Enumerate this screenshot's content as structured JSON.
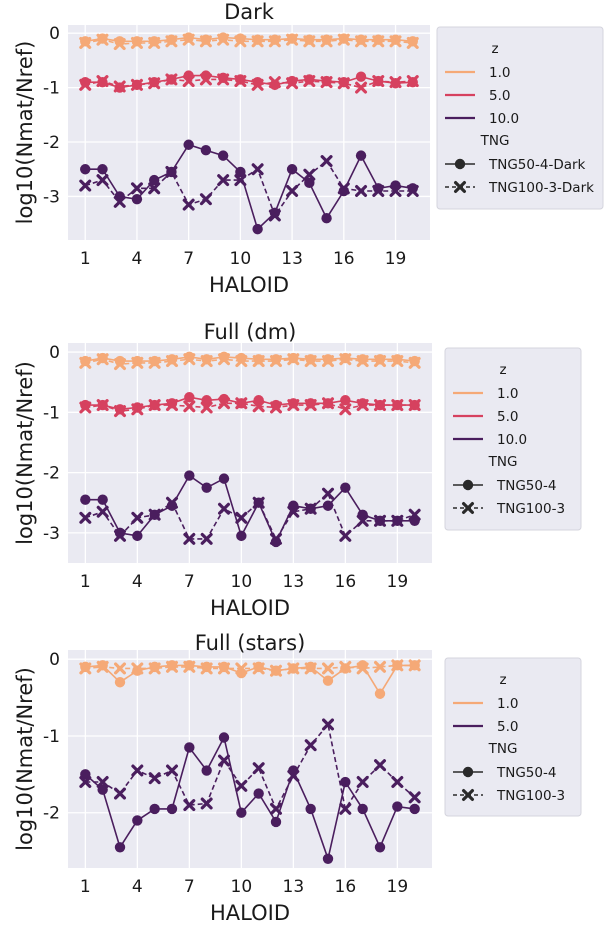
{
  "chart_data": [
    {
      "type": "line",
      "title": "Dark",
      "xlabel": "HALOID",
      "ylabel": "log10(Nmat/Nref)",
      "xlim": [
        0,
        21
      ],
      "ylim": [
        -3.8,
        0.15
      ],
      "xticks": [
        1,
        4,
        7,
        10,
        13,
        16,
        19
      ],
      "yticks": [
        0,
        -1,
        -2,
        -3
      ],
      "grid": true,
      "legend": {
        "placement": "right",
        "hue_title": "z",
        "style_title": "TNG",
        "z_entries": [
          {
            "label": "1.0",
            "color": "#f5a977"
          },
          {
            "label": "5.0",
            "color": "#d6415f"
          },
          {
            "label": "10.0",
            "color": "#4a1e5e"
          }
        ],
        "tng_entries": [
          {
            "label": "TNG50-4-Dark",
            "marker": "circle",
            "dash": "solid"
          },
          {
            "label": "TNG100-3-Dark",
            "marker": "x",
            "dash": "dashed"
          }
        ]
      },
      "x": [
        1,
        2,
        3,
        4,
        5,
        6,
        7,
        8,
        9,
        10,
        11,
        12,
        13,
        14,
        15,
        16,
        17,
        18,
        19,
        20
      ],
      "series": [
        {
          "z": "1.0",
          "tng": "TNG50-4-Dark",
          "color": "#f5a977",
          "values": [
            -0.15,
            -0.1,
            -0.15,
            -0.15,
            -0.15,
            -0.12,
            -0.08,
            -0.12,
            -0.08,
            -0.1,
            -0.12,
            -0.12,
            -0.1,
            -0.12,
            -0.12,
            -0.1,
            -0.12,
            -0.12,
            -0.12,
            -0.15
          ]
        },
        {
          "z": "1.0",
          "tng": "TNG100-3-Dark",
          "color": "#f5a977",
          "values": [
            -0.18,
            -0.12,
            -0.2,
            -0.18,
            -0.18,
            -0.15,
            -0.12,
            -0.15,
            -0.12,
            -0.15,
            -0.15,
            -0.15,
            -0.12,
            -0.15,
            -0.15,
            -0.12,
            -0.15,
            -0.15,
            -0.15,
            -0.18
          ]
        },
        {
          "z": "5.0",
          "tng": "TNG50-4-Dark",
          "color": "#d6415f",
          "values": [
            -0.9,
            -0.9,
            -1.0,
            -0.95,
            -0.9,
            -0.85,
            -0.78,
            -0.78,
            -0.82,
            -0.85,
            -0.9,
            -0.95,
            -0.88,
            -0.85,
            -0.88,
            -0.9,
            -0.8,
            -0.88,
            -0.92,
            -0.9
          ]
        },
        {
          "z": "5.0",
          "tng": "TNG100-3-Dark",
          "color": "#d6415f",
          "values": [
            -0.95,
            -0.88,
            -0.98,
            -0.95,
            -0.92,
            -0.85,
            -0.88,
            -0.85,
            -0.85,
            -0.88,
            -0.95,
            -0.9,
            -0.92,
            -0.88,
            -0.9,
            -0.92,
            -1.0,
            -0.88,
            -0.9,
            -0.88
          ]
        },
        {
          "z": "10.0",
          "tng": "TNG50-4-Dark",
          "color": "#4a1e5e",
          "values": [
            -2.5,
            -2.5,
            -3.0,
            -3.05,
            -2.7,
            -2.55,
            -2.05,
            -2.15,
            -2.25,
            -2.55,
            -3.6,
            -3.3,
            -2.5,
            -2.75,
            -3.4,
            -2.9,
            -2.25,
            -2.85,
            -2.8,
            -2.85
          ]
        },
        {
          "z": "10.0",
          "tng": "TNG100-3-Dark",
          "color": "#4a1e5e",
          "values": [
            -2.8,
            -2.7,
            -3.1,
            -2.85,
            -2.85,
            -2.55,
            -3.15,
            -3.05,
            -2.7,
            -2.7,
            -2.5,
            -3.35,
            -2.9,
            -2.6,
            -2.35,
            -2.85,
            -2.9,
            -2.9,
            -2.9,
            -2.9
          ]
        }
      ]
    },
    {
      "type": "line",
      "title": "Full (dm)",
      "xlabel": "HALOID",
      "ylabel": "log10(Nmat/Nref)",
      "xlim": [
        0,
        21
      ],
      "ylim": [
        -3.5,
        0.15
      ],
      "xticks": [
        1,
        4,
        7,
        10,
        13,
        16,
        19
      ],
      "yticks": [
        0,
        -1,
        -2,
        -3
      ],
      "grid": true,
      "legend": {
        "placement": "right",
        "hue_title": "z",
        "style_title": "TNG",
        "z_entries": [
          {
            "label": "1.0",
            "color": "#f5a977"
          },
          {
            "label": "5.0",
            "color": "#d6415f"
          },
          {
            "label": "10.0",
            "color": "#4a1e5e"
          }
        ],
        "tng_entries": [
          {
            "label": "TNG50-4",
            "marker": "circle",
            "dash": "solid"
          },
          {
            "label": "TNG100-3",
            "marker": "x",
            "dash": "dashed"
          }
        ]
      },
      "x": [
        1,
        2,
        3,
        4,
        5,
        6,
        7,
        8,
        9,
        10,
        11,
        12,
        13,
        14,
        15,
        16,
        17,
        18,
        19,
        20
      ],
      "series": [
        {
          "z": "1.0",
          "tng": "TNG50-4",
          "color": "#f5a977",
          "values": [
            -0.15,
            -0.1,
            -0.15,
            -0.15,
            -0.15,
            -0.12,
            -0.08,
            -0.12,
            -0.08,
            -0.1,
            -0.12,
            -0.12,
            -0.1,
            -0.12,
            -0.12,
            -0.1,
            -0.12,
            -0.12,
            -0.12,
            -0.15
          ]
        },
        {
          "z": "1.0",
          "tng": "TNG100-3",
          "color": "#f5a977",
          "values": [
            -0.18,
            -0.12,
            -0.2,
            -0.18,
            -0.18,
            -0.15,
            -0.12,
            -0.15,
            -0.12,
            -0.15,
            -0.15,
            -0.15,
            -0.12,
            -0.15,
            -0.15,
            -0.12,
            -0.15,
            -0.15,
            -0.15,
            -0.18
          ]
        },
        {
          "z": "5.0",
          "tng": "TNG50-4",
          "color": "#d6415f",
          "values": [
            -0.88,
            -0.88,
            -0.95,
            -0.92,
            -0.88,
            -0.85,
            -0.75,
            -0.8,
            -0.78,
            -0.85,
            -0.8,
            -0.88,
            -0.85,
            -0.85,
            -0.85,
            -0.8,
            -0.85,
            -0.88,
            -0.88,
            -0.88
          ]
        },
        {
          "z": "5.0",
          "tng": "TNG100-3",
          "color": "#d6415f",
          "values": [
            -0.92,
            -0.88,
            -0.98,
            -0.95,
            -0.88,
            -0.88,
            -0.9,
            -0.92,
            -0.85,
            -0.85,
            -0.9,
            -0.92,
            -0.88,
            -0.88,
            -0.85,
            -0.95,
            -0.88,
            -0.88,
            -0.88,
            -0.88
          ]
        },
        {
          "z": "10.0",
          "tng": "TNG50-4",
          "color": "#4a1e5e",
          "values": [
            -2.45,
            -2.45,
            -3.0,
            -3.05,
            -2.7,
            -2.55,
            -2.05,
            -2.25,
            -2.1,
            -3.05,
            -2.5,
            -3.15,
            -2.55,
            -2.6,
            -2.55,
            -2.25,
            -2.7,
            -2.8,
            -2.8,
            -2.8
          ]
        },
        {
          "z": "10.0",
          "tng": "TNG100-3",
          "color": "#4a1e5e",
          "values": [
            -2.75,
            -2.65,
            -3.05,
            -2.75,
            -2.7,
            -2.5,
            -3.1,
            -3.1,
            -2.6,
            -2.75,
            -2.5,
            -3.1,
            -2.65,
            -2.6,
            -2.35,
            -3.05,
            -2.8,
            -2.8,
            -2.8,
            -2.7
          ]
        }
      ]
    },
    {
      "type": "line",
      "title": "Full (stars)",
      "xlabel": "HALOID",
      "ylabel": "log10(Nmat/Nref)",
      "xlim": [
        0,
        21
      ],
      "ylim": [
        -2.72,
        0.12
      ],
      "xticks": [
        1,
        4,
        7,
        10,
        13,
        16,
        19
      ],
      "yticks": [
        0,
        -1,
        -2
      ],
      "grid": true,
      "legend": {
        "placement": "right",
        "hue_title": "z",
        "style_title": "TNG",
        "z_entries": [
          {
            "label": "1.0",
            "color": "#f5a977"
          },
          {
            "label": "5.0",
            "color": "#4a1e5e"
          }
        ],
        "tng_entries": [
          {
            "label": "TNG50-4",
            "marker": "circle",
            "dash": "solid"
          },
          {
            "label": "TNG100-3",
            "marker": "x",
            "dash": "dashed"
          }
        ]
      },
      "x": [
        1,
        2,
        3,
        4,
        5,
        6,
        7,
        8,
        9,
        10,
        11,
        12,
        13,
        14,
        15,
        16,
        17,
        18,
        19,
        20
      ],
      "series": [
        {
          "z": "1.0",
          "tng": "TNG50-4",
          "color": "#f5a977",
          "values": [
            -0.1,
            -0.08,
            -0.3,
            -0.15,
            -0.1,
            -0.08,
            -0.08,
            -0.1,
            -0.1,
            -0.18,
            -0.1,
            -0.15,
            -0.12,
            -0.1,
            -0.28,
            -0.12,
            -0.08,
            -0.45,
            -0.08,
            -0.08
          ]
        },
        {
          "z": "1.0",
          "tng": "TNG100-3",
          "color": "#f5a977",
          "values": [
            -0.12,
            -0.1,
            -0.12,
            -0.12,
            -0.12,
            -0.1,
            -0.1,
            -0.12,
            -0.12,
            -0.12,
            -0.12,
            -0.15,
            -0.12,
            -0.12,
            -0.12,
            -0.1,
            -0.12,
            -0.1,
            -0.08,
            -0.08
          ]
        },
        {
          "z": "5.0",
          "tng": "TNG50-4",
          "color": "#4a1e5e",
          "values": [
            -1.5,
            -1.7,
            -2.45,
            -2.1,
            -1.95,
            -1.95,
            -1.15,
            -1.45,
            -1.02,
            -2.0,
            -1.75,
            -2.12,
            -1.45,
            -1.95,
            -2.6,
            -1.6,
            -1.95,
            -2.45,
            -1.92,
            -1.95
          ]
        },
        {
          "z": "5.0",
          "tng": "TNG100-3",
          "color": "#4a1e5e",
          "values": [
            -1.6,
            -1.6,
            -1.75,
            -1.45,
            -1.55,
            -1.45,
            -1.9,
            -1.88,
            -1.32,
            -1.65,
            -1.42,
            -1.95,
            -1.52,
            -1.12,
            -0.85,
            -1.95,
            -1.6,
            -1.38,
            -1.6,
            -1.8
          ]
        }
      ]
    }
  ]
}
